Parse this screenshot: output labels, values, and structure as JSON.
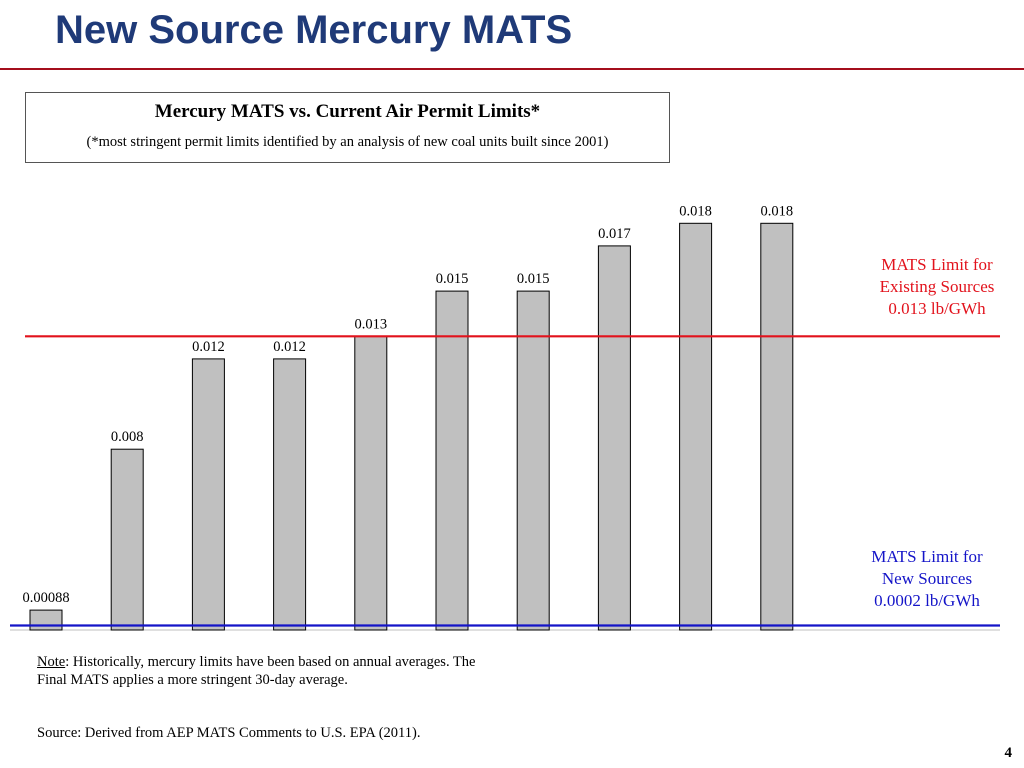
{
  "slide": {
    "title": "New Source Mercury MATS",
    "page_number": "4"
  },
  "box": {
    "heading": "Mercury MATS vs. Current Air Permit Limits*",
    "subheading": "(*most stringent permit limits identified by an analysis of new coal units built since 2001)"
  },
  "annotations": {
    "existing": [
      "MATS Limit for",
      "Existing Sources",
      "0.013 lb/GWh"
    ],
    "new": [
      "MATS Limit for",
      "New Sources",
      "0.0002 lb/GWh"
    ]
  },
  "note": {
    "label": "Note",
    "text": ": Historically, mercury limits have been based on annual averages. The Final MATS applies a more stringent 30-day average."
  },
  "source": "Source: Derived from AEP MATS Comments to U.S. EPA (2011).",
  "colors": {
    "bar_fill": "#c0c0c0",
    "bar_stroke": "#000000",
    "existing_limit_line": "#e2121c",
    "new_limit_line": "#1414c8",
    "title": "#1f3a78",
    "title_rule": "#a40e1c"
  },
  "chart_data": {
    "type": "bar",
    "values": [
      0.00088,
      0.008,
      0.012,
      0.012,
      0.013,
      0.015,
      0.015,
      0.017,
      0.018,
      0.018
    ],
    "data_labels": [
      "0.00088",
      "0.008",
      "0.012",
      "0.012",
      "0.013",
      "0.015",
      "0.015",
      "0.017",
      "0.018",
      "0.018"
    ],
    "reference_lines": [
      {
        "name": "MATS Limit for Existing Sources",
        "value": 0.013,
        "color": "#e2121c"
      },
      {
        "name": "MATS Limit for New Sources",
        "value": 0.0002,
        "color": "#1414c8"
      }
    ],
    "ylim": [
      0,
      0.0185
    ],
    "title": "Mercury MATS vs. Current Air Permit Limits*",
    "xlabel": "",
    "ylabel": "",
    "grid": false,
    "legend": "none"
  }
}
